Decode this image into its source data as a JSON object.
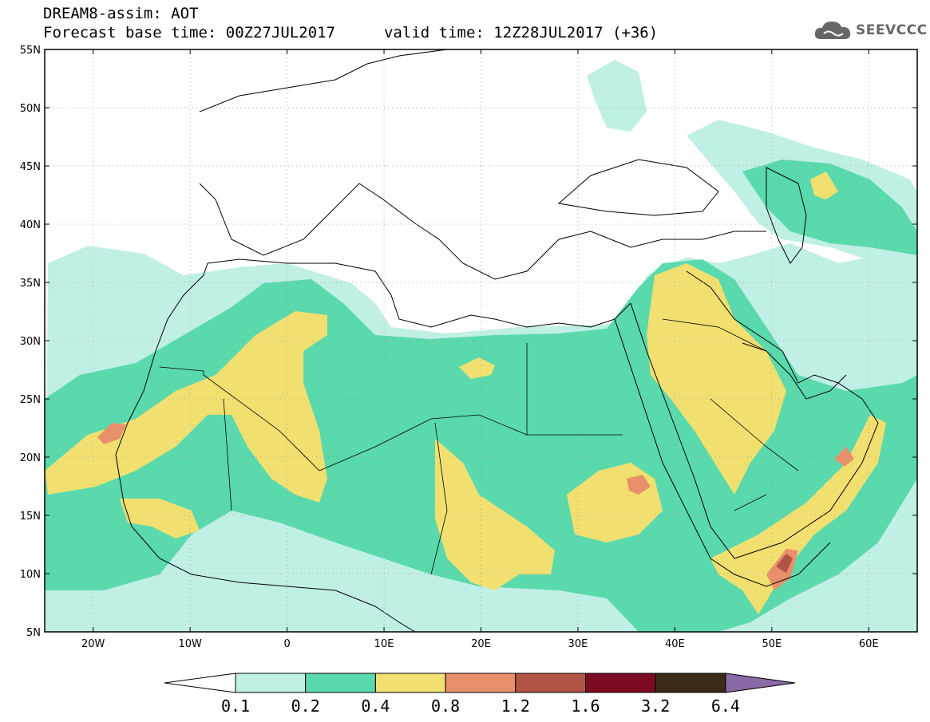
{
  "header": {
    "title": "DREAM8-assim: AOT",
    "base_time": "Forecast base time: 00Z27JUL2017",
    "valid_time": "valid time: 12Z28JUL2017 (+36)"
  },
  "logo": {
    "text": "SEEVCCC",
    "icon": "cloud-icon"
  },
  "map": {
    "lat_labels": [
      "55N",
      "50N",
      "45N",
      "40N",
      "35N",
      "30N",
      "25N",
      "20N",
      "15N",
      "10N",
      "5N"
    ],
    "lon_labels": [
      "20W",
      "10W",
      "0",
      "10E",
      "20E",
      "30E",
      "40E",
      "50E",
      "60E"
    ],
    "extent": {
      "lon": [
        -25,
        65
      ],
      "lat": [
        5,
        55
      ]
    }
  },
  "colorbar": {
    "labels": [
      "0.1",
      "0.2",
      "0.4",
      "0.8",
      "1.2",
      "1.6",
      "3.2",
      "6.4"
    ],
    "colors": [
      "#c0efe6",
      "#5ad9ad",
      "#f1e070",
      "#e8906a",
      "#b15445",
      "#7c0b22",
      "#3c2a1a"
    ],
    "over_color": "#8a6aa6",
    "under_color": "#ffffff"
  }
}
